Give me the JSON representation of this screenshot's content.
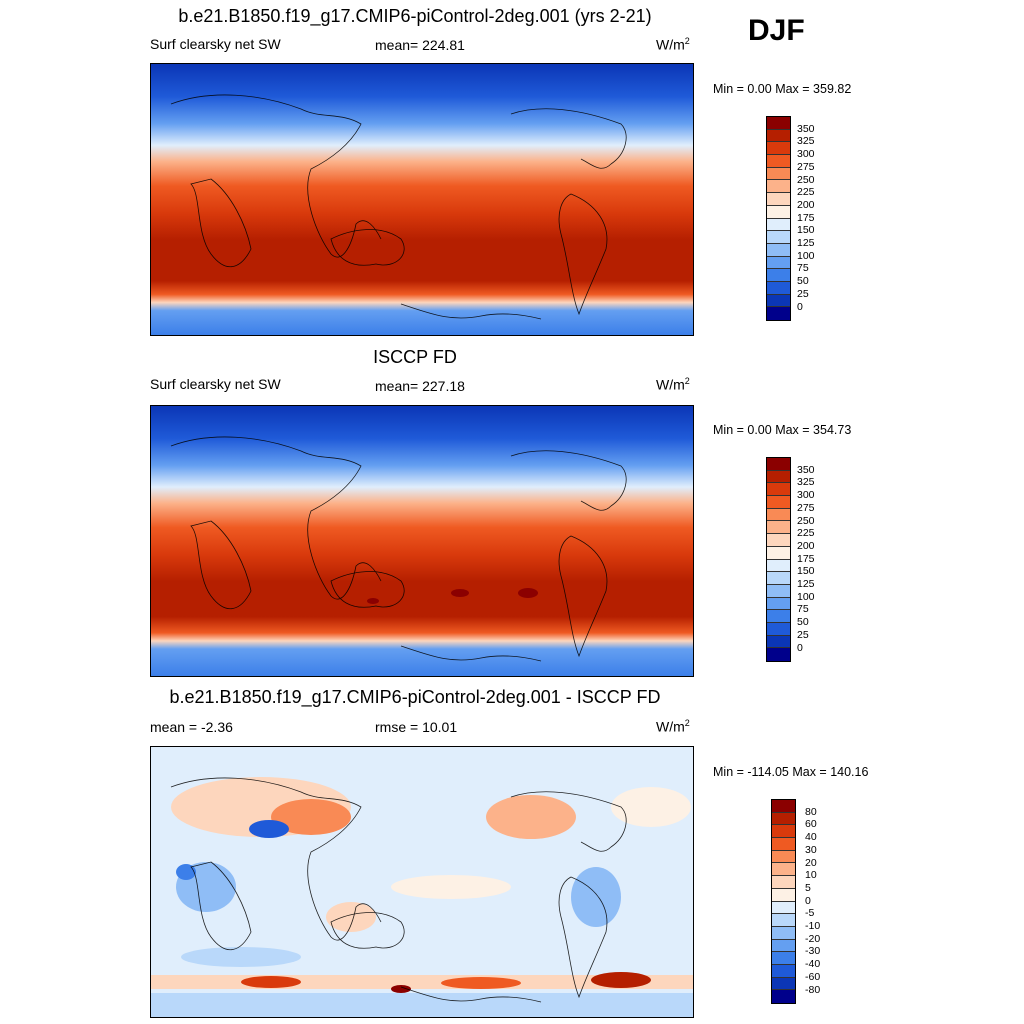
{
  "season": "DJF",
  "panels": [
    {
      "id": "model",
      "title": "b.e21.B1850.f19_g17.CMIP6-piControl-2deg.001 (yrs 2-21)",
      "left_label": "Surf clearsky net SW",
      "center_label": "mean= 224.81",
      "units": "W/m",
      "units_sup": "2",
      "minmax": "Min =   0.00 Max = 359.82",
      "colorbar": {
        "colors": [
          "#8b0000",
          "#b51f00",
          "#d93a0c",
          "#ef5a22",
          "#f98a55",
          "#fcb28a",
          "#fdd6bd",
          "#fdf1e5",
          "#e0eefc",
          "#b9d8fa",
          "#8fbdf6",
          "#649ff1",
          "#3c7fe9",
          "#1f5ad8",
          "#0b36b6",
          "#00008b"
        ],
        "labels": [
          "350",
          "325",
          "300",
          "275",
          "250",
          "225",
          "200",
          "175",
          "150",
          "125",
          "100",
          "75",
          "50",
          "25",
          "0"
        ]
      }
    },
    {
      "id": "obs",
      "title": "ISCCP FD",
      "left_label": "Surf clearsky net SW",
      "center_label": "mean= 227.18",
      "units": "W/m",
      "units_sup": "2",
      "minmax": "Min =   0.00 Max = 354.73",
      "colorbar": {
        "colors": [
          "#8b0000",
          "#b51f00",
          "#d93a0c",
          "#ef5a22",
          "#f98a55",
          "#fcb28a",
          "#fdd6bd",
          "#fdf1e5",
          "#e0eefc",
          "#b9d8fa",
          "#8fbdf6",
          "#649ff1",
          "#3c7fe9",
          "#1f5ad8",
          "#0b36b6",
          "#00008b"
        ],
        "labels": [
          "350",
          "325",
          "300",
          "275",
          "250",
          "225",
          "200",
          "175",
          "150",
          "125",
          "100",
          "75",
          "50",
          "25",
          "0"
        ]
      }
    },
    {
      "id": "diff",
      "title": "b.e21.B1850.f19_g17.CMIP6-piControl-2deg.001 - ISCCP FD",
      "left_label": "mean =  -2.36",
      "center_label": "rmse =  10.01",
      "units": "W/m",
      "units_sup": "2",
      "minmax": "Min = -114.05 Max = 140.16",
      "colorbar": {
        "colors": [
          "#8b0000",
          "#b51f00",
          "#d93a0c",
          "#ef5a22",
          "#f98a55",
          "#fcb28a",
          "#fdd6bd",
          "#fdf1e5",
          "#e0eefc",
          "#b9d8fa",
          "#8fbdf6",
          "#649ff1",
          "#3c7fe9",
          "#1f5ad8",
          "#0b36b6",
          "#00008b"
        ],
        "labels": [
          "80",
          "60",
          "40",
          "30",
          "20",
          "10",
          "5",
          "0",
          "-5",
          "-10",
          "-20",
          "-30",
          "-40",
          "-60",
          "-80"
        ]
      }
    }
  ]
}
